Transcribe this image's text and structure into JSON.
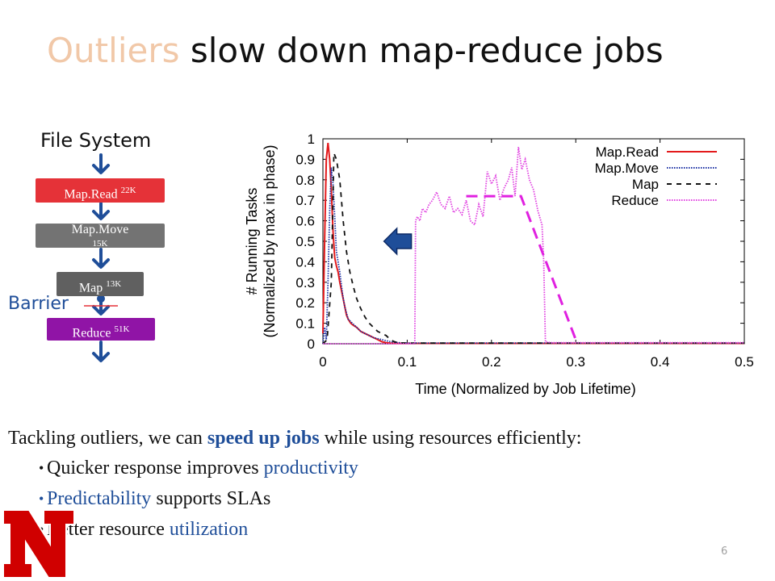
{
  "slide": {
    "title_accent": "Outliers",
    "title_rest": " slow down map-reduce jobs",
    "number": "6"
  },
  "pipeline": {
    "source_label": "File System",
    "barrier_label": "Barrier",
    "stages": [
      {
        "name": "Map.Read",
        "count": "22K"
      },
      {
        "name": "Map.Move",
        "count": "15K"
      },
      {
        "name": "Map",
        "count": "13K"
      },
      {
        "name": "Reduce",
        "count": "51K"
      }
    ],
    "colors": {
      "read": "#e53238",
      "move": "#737373",
      "map": "#606060",
      "reduce": "#9014a6",
      "arrow": "#1f4e99"
    }
  },
  "chart_data": {
    "type": "line",
    "xlabel": "Time (Normalized by Job Lifetime)",
    "ylabel_lines": [
      "# Running Tasks",
      "(Normalized by max in phase)"
    ],
    "xlim": [
      0,
      0.5
    ],
    "ylim": [
      0,
      1
    ],
    "xticks": [
      "0",
      "0.1",
      "0.2",
      "0.3",
      "0.4",
      "0.5"
    ],
    "yticks": [
      "0",
      "0.1",
      "0.2",
      "0.3",
      "0.4",
      "0.5",
      "0.6",
      "0.7",
      "0.8",
      "0.9",
      "1"
    ],
    "legend_position": "top-right",
    "series": [
      {
        "name": "Map.Read",
        "color": "#e31a1c",
        "style": "solid",
        "x": [
          0,
          0.002,
          0.004,
          0.006,
          0.008,
          0.01,
          0.012,
          0.014,
          0.016,
          0.018,
          0.02,
          0.022,
          0.025,
          0.028,
          0.03,
          0.033,
          0.036,
          0.04,
          0.045,
          0.05,
          0.055,
          0.06,
          0.065,
          0.07,
          0.075,
          0.08,
          0.09,
          0.1,
          0.15,
          0.2,
          0.3,
          0.4,
          0.5
        ],
        "y": [
          0.05,
          0.5,
          0.9,
          0.98,
          0.9,
          0.75,
          0.55,
          0.42,
          0.38,
          0.35,
          0.3,
          0.26,
          0.2,
          0.14,
          0.12,
          0.1,
          0.09,
          0.08,
          0.06,
          0.05,
          0.04,
          0.03,
          0.02,
          0.01,
          0.005,
          0.003,
          0.002,
          0.002,
          0.002,
          0.002,
          0.002,
          0.002,
          0.002
        ]
      },
      {
        "name": "Map.Move",
        "color": "#1a2fa3",
        "style": "dotted",
        "x": [
          0,
          0.002,
          0.004,
          0.006,
          0.008,
          0.01,
          0.012,
          0.014,
          0.016,
          0.018,
          0.02,
          0.023,
          0.026,
          0.03,
          0.035,
          0.04,
          0.045,
          0.05,
          0.055,
          0.06,
          0.07,
          0.08,
          0.09,
          0.1,
          0.2,
          0.3,
          0.4,
          0.5
        ],
        "y": [
          0,
          0.08,
          0.02,
          0.3,
          0.65,
          0.86,
          0.78,
          0.62,
          0.45,
          0.4,
          0.35,
          0.25,
          0.18,
          0.12,
          0.1,
          0.08,
          0.06,
          0.05,
          0.04,
          0.03,
          0.02,
          0.01,
          0.005,
          0.003,
          0.003,
          0.003,
          0.003,
          0.003
        ]
      },
      {
        "name": "Map",
        "color": "#111111",
        "style": "dashed",
        "x": [
          0,
          0.005,
          0.01,
          0.013,
          0.016,
          0.02,
          0.024,
          0.028,
          0.032,
          0.036,
          0.04,
          0.045,
          0.05,
          0.055,
          0.06,
          0.065,
          0.07,
          0.075,
          0.08,
          0.085,
          0.09,
          0.1,
          0.2,
          0.3,
          0.4,
          0.5
        ],
        "y": [
          0,
          0.02,
          0.3,
          0.93,
          0.9,
          0.8,
          0.6,
          0.45,
          0.35,
          0.28,
          0.22,
          0.17,
          0.13,
          0.1,
          0.08,
          0.06,
          0.05,
          0.04,
          0.02,
          0.01,
          0.005,
          0.003,
          0.003,
          0.003,
          0.003,
          0.003
        ]
      },
      {
        "name": "Reduce",
        "color": "#e040e0",
        "style": "dotted",
        "x": [
          0,
          0.109,
          0.11,
          0.112,
          0.115,
          0.118,
          0.122,
          0.126,
          0.13,
          0.135,
          0.14,
          0.145,
          0.15,
          0.155,
          0.16,
          0.165,
          0.17,
          0.175,
          0.18,
          0.185,
          0.19,
          0.195,
          0.2,
          0.205,
          0.21,
          0.215,
          0.22,
          0.224,
          0.228,
          0.232,
          0.236,
          0.24,
          0.245,
          0.25,
          0.255,
          0.26,
          0.262,
          0.264,
          0.27,
          0.3,
          0.4,
          0.5
        ],
        "y": [
          0,
          0,
          0.6,
          0.62,
          0.6,
          0.66,
          0.64,
          0.68,
          0.7,
          0.74,
          0.68,
          0.66,
          0.72,
          0.64,
          0.66,
          0.63,
          0.7,
          0.6,
          0.58,
          0.68,
          0.62,
          0.84,
          0.78,
          0.82,
          0.7,
          0.76,
          0.8,
          0.86,
          0.72,
          0.96,
          0.85,
          0.9,
          0.8,
          0.75,
          0.65,
          0.58,
          0.4,
          0.01,
          0.005,
          0.005,
          0.005,
          0.005
        ]
      }
    ],
    "overlays": {
      "dashed_trend": {
        "color": "#e020e0",
        "x": [
          0.17,
          0.235,
          0.3
        ],
        "y": [
          0.72,
          0.72,
          0.02
        ]
      },
      "arrow": {
        "color": "#1f4e99",
        "direction": "left",
        "at_x": 0.105,
        "at_y": 0.5
      }
    }
  },
  "takeaway": {
    "intro_pre": "Tackling outliers, we can ",
    "intro_highlight": "speed up jobs",
    "intro_post": " while using resources efficiently:",
    "bullets": [
      {
        "pre": "Quicker response improves ",
        "hl": "productivity",
        "post": ""
      },
      {
        "pre": "",
        "hl": "Predictability",
        "post": " supports SLAs"
      },
      {
        "pre": "Better resource ",
        "hl": "utilization",
        "post": ""
      }
    ]
  },
  "logo": {
    "letter": "N",
    "color": "#d00000",
    "shape": "block-n-logo"
  }
}
